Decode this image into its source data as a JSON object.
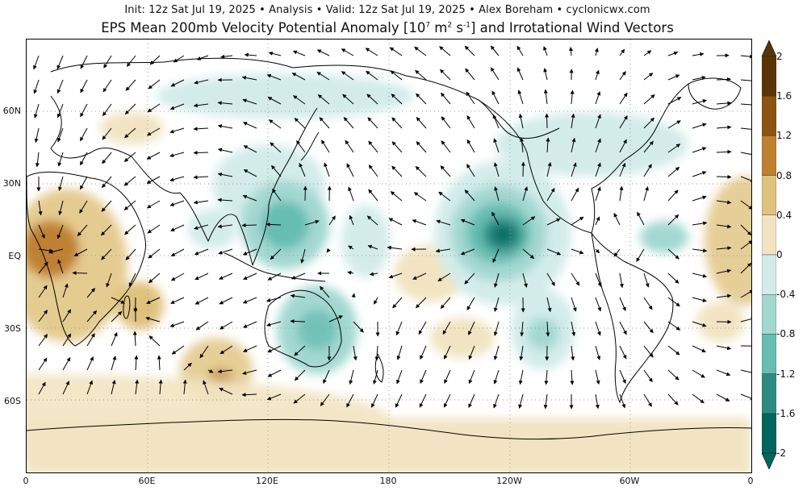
{
  "header": {
    "subtitle": "Init: 12z Sat Jul 19, 2025 • Analysis • Valid: 12z Sat Jul 19, 2025 • Alex Boreham • cyclonicwx.com",
    "title_main": "EPS Mean 200mb Velocity Potential Anomaly [10",
    "title_sup1": "7",
    "title_mid": " m",
    "title_sup2": "2",
    "title_s": " s",
    "title_sup3": "-1",
    "title_end": "] and Irrotational Wind Vectors"
  },
  "axes": {
    "lat_labels": [
      "60N",
      "30N",
      "EQ",
      "30S",
      "60S"
    ],
    "lon_labels": [
      "0",
      "60E",
      "120E",
      "180",
      "120W",
      "60W",
      "0"
    ]
  },
  "colorbar": {
    "labels": [
      "2",
      "1.6",
      "1.2",
      "0.8",
      "0.4",
      "0",
      "-0.4",
      "-0.8",
      "-1.2",
      "-1.6",
      "-2"
    ],
    "colors": [
      "#5a3407",
      "#8c5410",
      "#bf8030",
      "#dfc27d",
      "#f2e4c2",
      "#ffffff",
      "#d3ecea",
      "#a3d8d1",
      "#66bdb2",
      "#2c8c83",
      "#01665e"
    ]
  },
  "colors": {
    "negative_anomaly": "#35978f",
    "positive_anomaly": "#bf8030",
    "land_outline": "#000000",
    "grid": "#9a9a9a"
  }
}
